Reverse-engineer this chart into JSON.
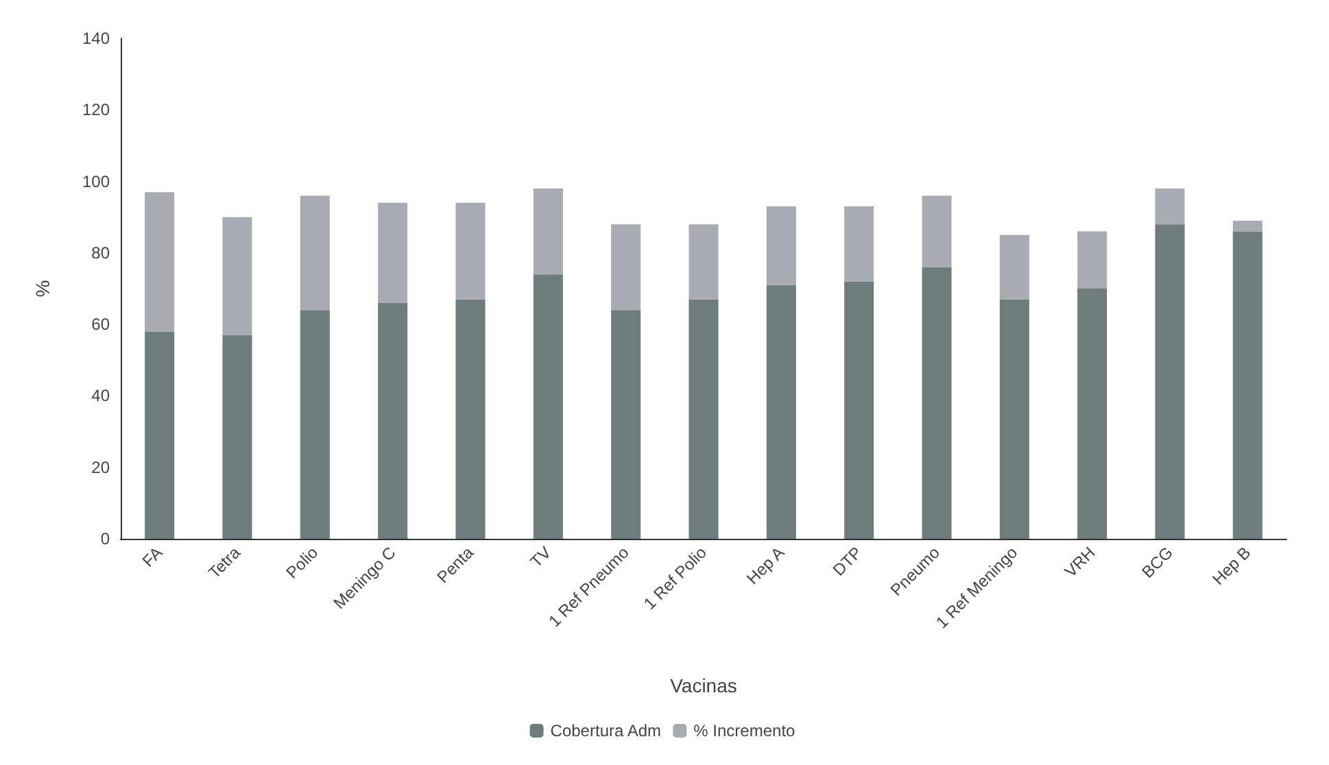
{
  "chart_data": {
    "type": "bar",
    "stacked": true,
    "xlabel": "Vacinas",
    "ylabel": "%",
    "categories": [
      "FA",
      "Tetra",
      "Polio",
      "Meningo C",
      "Penta",
      "TV",
      "1 Ref Pneumo",
      "1 Ref Polio",
      "Hep A",
      "DTP",
      "Pneumo",
      "1 Ref Meningo",
      "VRH",
      "BCG",
      "Hep B"
    ],
    "series": [
      {
        "name": "Cobertura Adm",
        "color": "#6e7c7c",
        "values": [
          58,
          57,
          64,
          66,
          67,
          74,
          64,
          67,
          71,
          72,
          76,
          67,
          70,
          88,
          86
        ]
      },
      {
        "name": "% Incremento",
        "color": "#a9abb2",
        "values": [
          39,
          33,
          32,
          28,
          27,
          24,
          24,
          21,
          22,
          21,
          20,
          18,
          16,
          10,
          3
        ]
      }
    ],
    "ylim": [
      0,
      140
    ],
    "yticks": [
      0,
      20,
      40,
      60,
      80,
      100,
      120,
      140
    ],
    "grid": false,
    "legend": "bottom"
  }
}
